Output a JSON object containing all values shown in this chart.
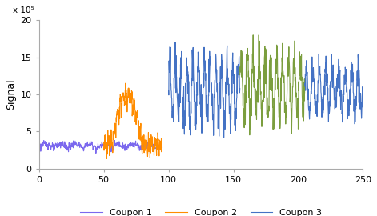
{
  "coupon1_color": "#7B68EE",
  "coupon2_color": "#FF8C00",
  "coupon3_color": "#4472C4",
  "coupon4_color": "#7B9E3E",
  "ylabel": "Signal",
  "multiplier_label": "x 10⁵",
  "xlim": [
    0,
    250
  ],
  "ylim": [
    0,
    20
  ],
  "xticks": [
    0,
    50,
    100,
    150,
    200,
    250
  ],
  "yticks": [
    0,
    5,
    10,
    15,
    20
  ],
  "legend_labels": [
    "Coupon 1",
    "Coupon 2",
    "Coupon 3"
  ],
  "figsize": [
    4.71,
    2.7
  ],
  "dpi": 100,
  "bg_color": "#FFFFFF",
  "spine_color": "#AAAAAA",
  "tick_fontsize": 8,
  "ylabel_fontsize": 9,
  "legend_fontsize": 8
}
